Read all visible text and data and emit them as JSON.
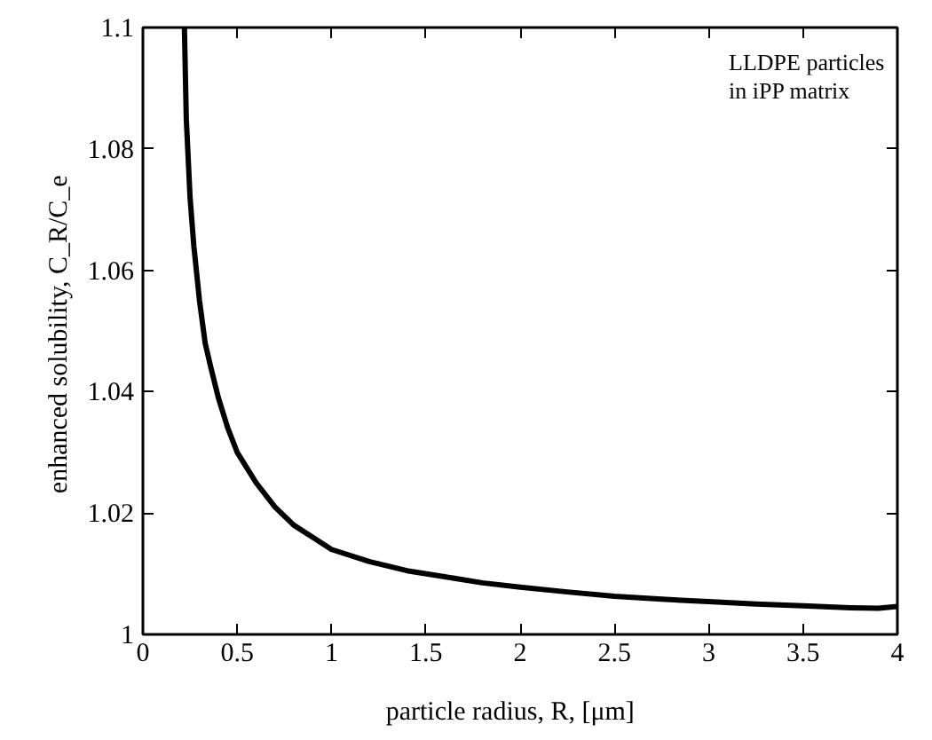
{
  "chart_data": {
    "type": "line",
    "xlabel": "particle radius,  R,   [μm]",
    "ylabel": "enhanced solubility,  C_R/C_e",
    "annotations": [
      "LLDPE particles\nin  iPP matrix"
    ],
    "series": [
      {
        "color": "#000000",
        "x": [
          0.22,
          0.23,
          0.25,
          0.27,
          0.3,
          0.33,
          0.36,
          0.4,
          0.45,
          0.5,
          0.6,
          0.7,
          0.8,
          0.9,
          1.0,
          1.2,
          1.4,
          1.6,
          1.8,
          2.0,
          2.25,
          2.5,
          2.75,
          3.0,
          3.25,
          3.5,
          3.75,
          3.9,
          4.0
        ],
        "values": [
          1.1,
          1.085,
          1.072,
          1.064,
          1.055,
          1.048,
          1.044,
          1.039,
          1.034,
          1.03,
          1.025,
          1.021,
          1.018,
          1.016,
          1.014,
          1.012,
          1.0105,
          1.0095,
          1.0085,
          1.0078,
          1.007,
          1.0063,
          1.0058,
          1.0054,
          1.005,
          1.0047,
          1.0044,
          1.0043,
          1.0046
        ]
      }
    ],
    "xlim": [
      0,
      4
    ],
    "xticks": [
      0,
      0.5,
      1,
      1.5,
      2,
      2.5,
      3,
      3.5,
      4
    ],
    "ylim": [
      1,
      1.1
    ],
    "yticks": [
      1,
      1.02,
      1.04,
      1.06,
      1.08,
      1.1
    ],
    "grid": false,
    "marker": "none",
    "line_style": "solid"
  }
}
